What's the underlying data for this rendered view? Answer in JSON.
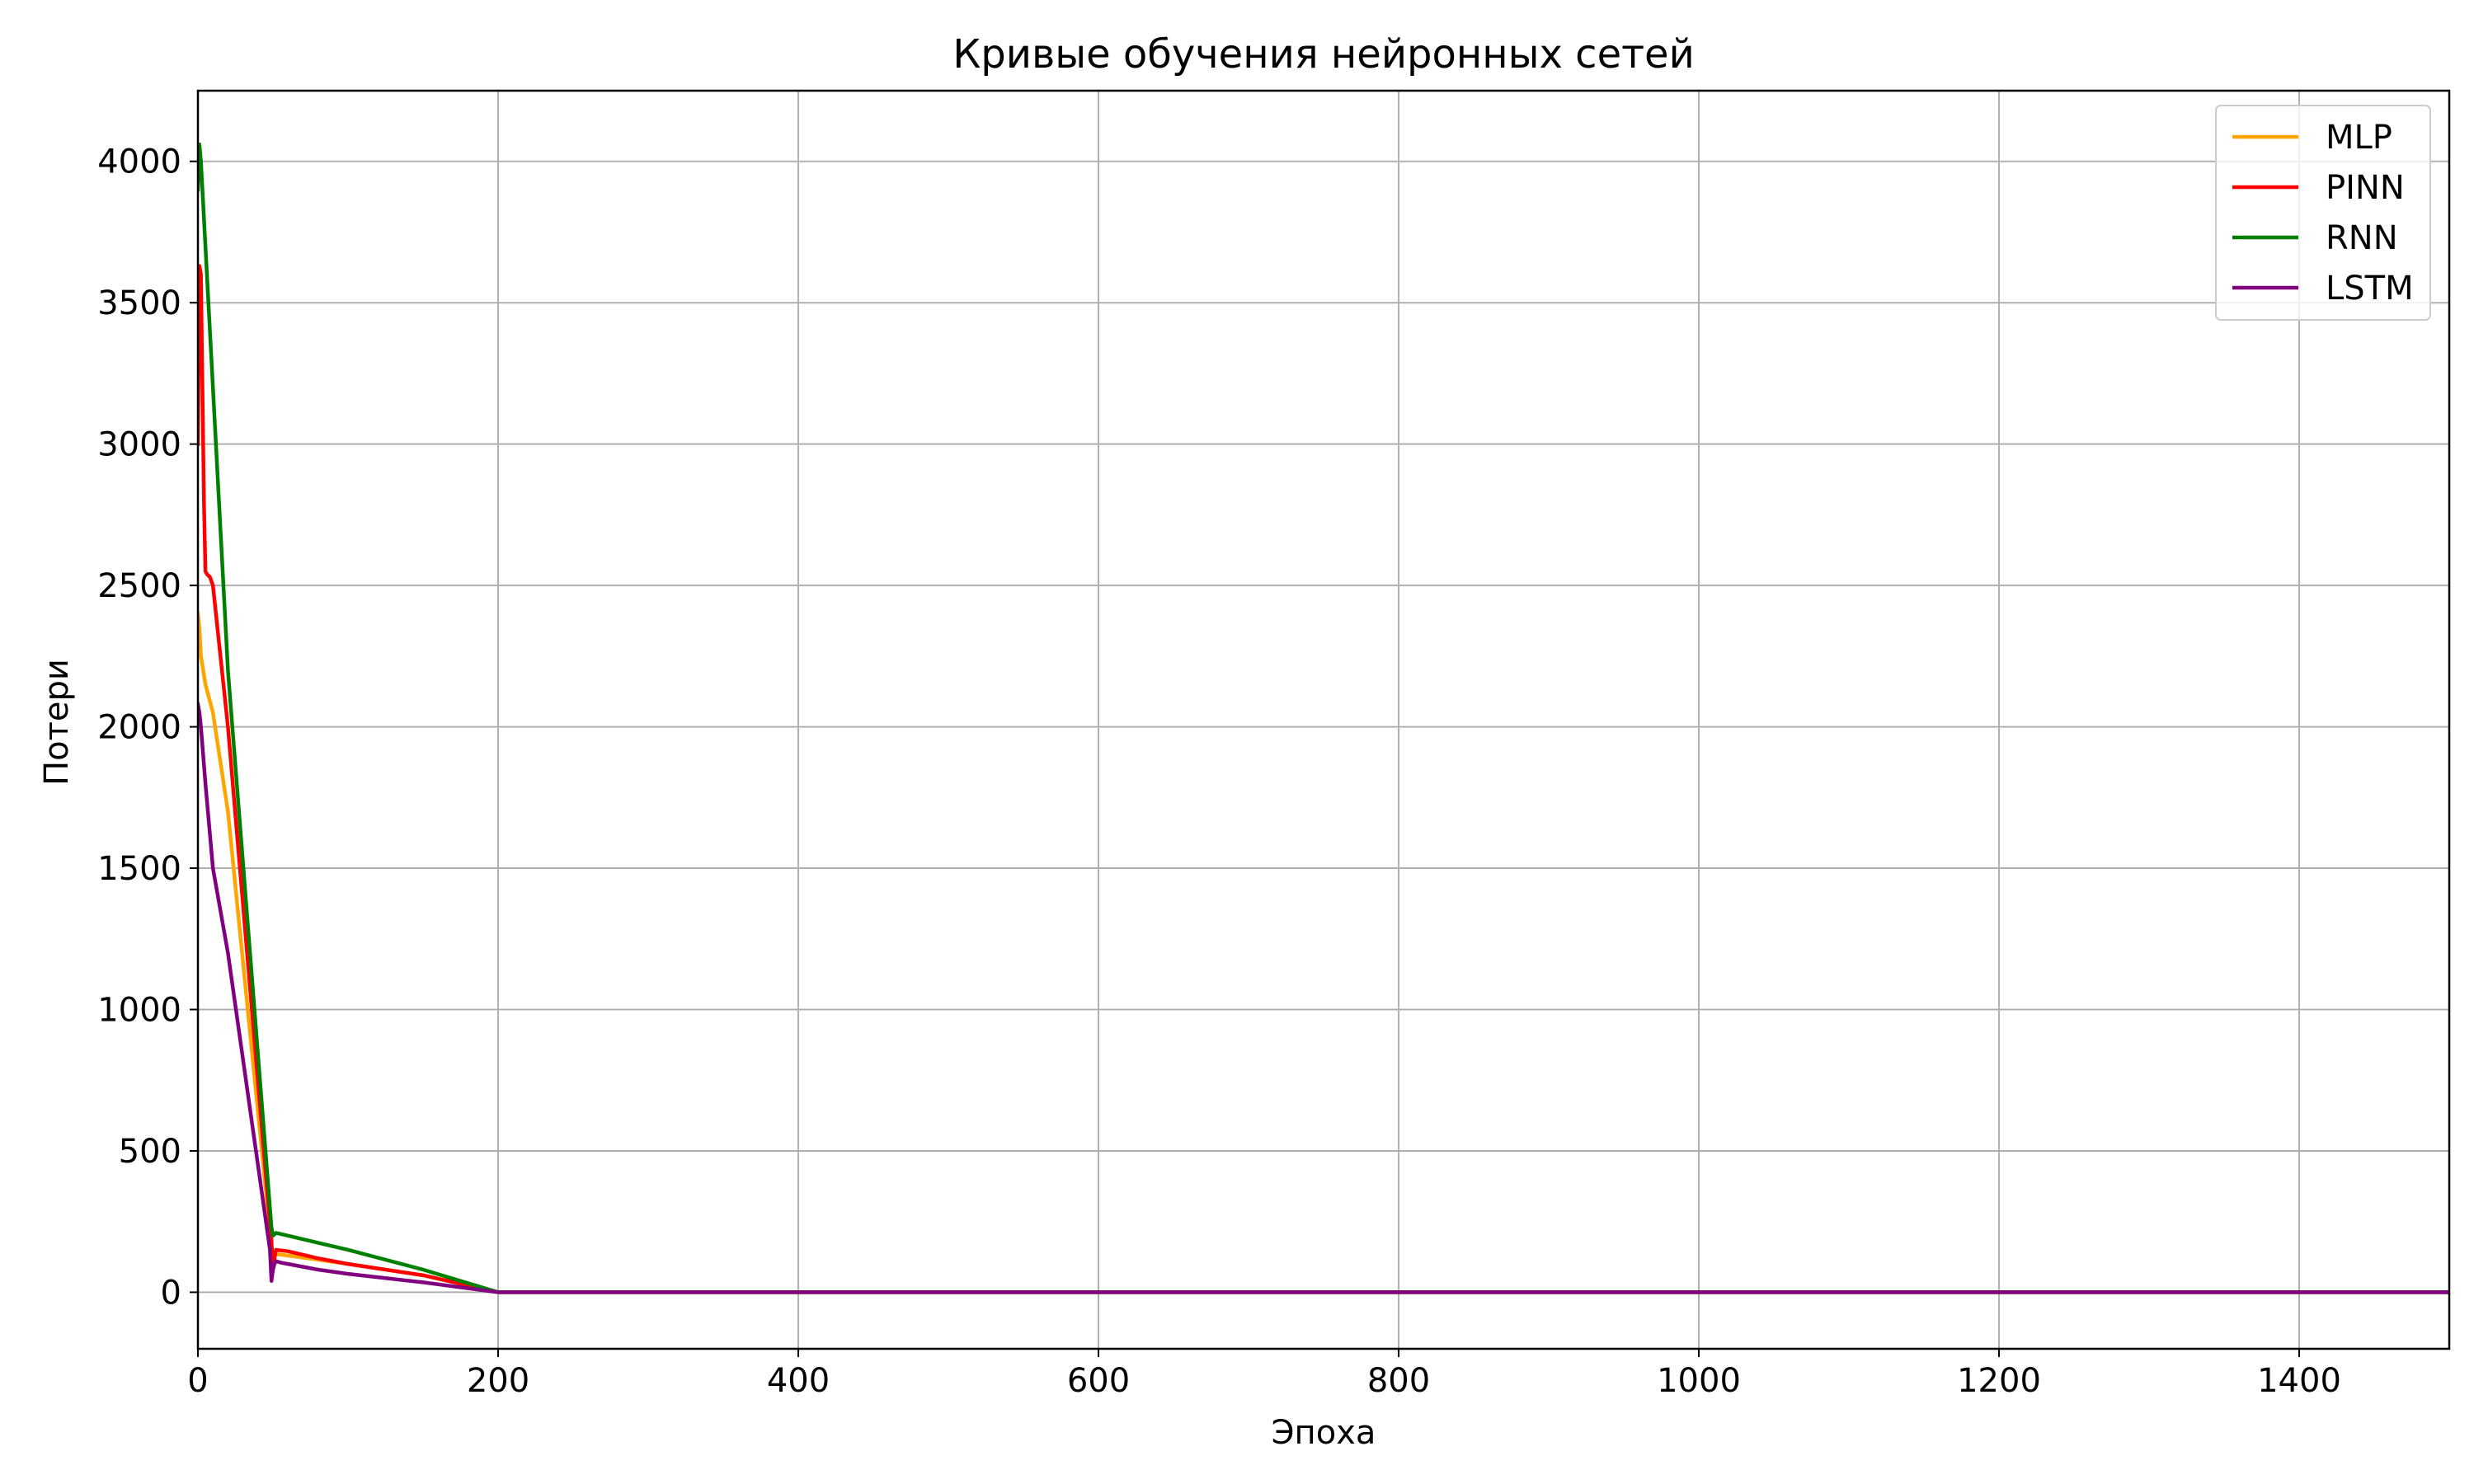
{
  "chart_data": {
    "type": "line",
    "title": "Кривые обучения нейронных сетей",
    "xlabel": "Эпоха",
    "ylabel": "Потери",
    "xlim": [
      0,
      1500
    ],
    "ylim": [
      -200,
      4250
    ],
    "xticks": [
      0,
      200,
      400,
      600,
      800,
      1000,
      1200,
      1400
    ],
    "yticks": [
      0,
      500,
      1000,
      1500,
      2000,
      2500,
      3000,
      3500,
      4000
    ],
    "grid": true,
    "legend_position": "top-right",
    "series": [
      {
        "name": "MLP",
        "color": "#ffa500",
        "x": [
          0,
          1,
          2,
          5,
          10,
          20,
          49,
          50,
          52,
          60,
          80,
          100,
          150,
          200,
          300,
          500,
          1000,
          1500
        ],
        "y": [
          2400,
          2350,
          2250,
          2150,
          2050,
          1700,
          160,
          120,
          135,
          130,
          115,
          100,
          60,
          0,
          0,
          0,
          0,
          0
        ]
      },
      {
        "name": "PINN",
        "color": "#ff0000",
        "x": [
          0,
          1,
          2,
          3,
          4,
          5,
          6,
          8,
          10,
          20,
          49,
          50,
          52,
          60,
          80,
          100,
          150,
          200,
          300,
          500,
          1000,
          1500
        ],
        "y": [
          3000,
          3630,
          3600,
          3200,
          2800,
          2550,
          2540,
          2530,
          2500,
          2000,
          180,
          90,
          150,
          145,
          120,
          100,
          60,
          0,
          0,
          0,
          0,
          0
        ]
      },
      {
        "name": "RNN",
        "color": "#008000",
        "x": [
          0,
          1,
          2,
          5,
          10,
          20,
          49,
          50,
          52,
          60,
          80,
          100,
          150,
          200,
          300,
          500,
          1000,
          1500
        ],
        "y": [
          3900,
          4060,
          4000,
          3700,
          3200,
          2200,
          230,
          200,
          210,
          200,
          175,
          150,
          80,
          0,
          0,
          0,
          0,
          0
        ]
      },
      {
        "name": "LSTM",
        "color": "#800080",
        "x": [
          0,
          1,
          2,
          5,
          10,
          20,
          48,
          49,
          50,
          51,
          52,
          55,
          60,
          80,
          100,
          150,
          200,
          300,
          500,
          1000,
          1500
        ],
        "y": [
          2080,
          2050,
          2000,
          1800,
          1500,
          1200,
          150,
          40,
          80,
          100,
          110,
          105,
          100,
          80,
          65,
          35,
          0,
          0,
          0,
          0,
          0
        ]
      }
    ]
  }
}
